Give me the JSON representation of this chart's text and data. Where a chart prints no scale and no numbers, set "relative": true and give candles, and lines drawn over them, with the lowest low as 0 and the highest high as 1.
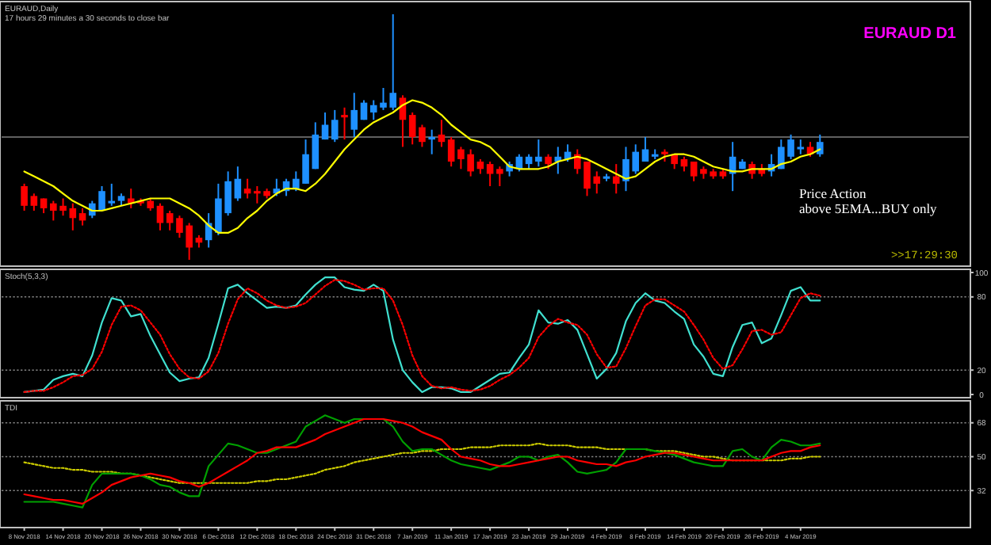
{
  "chart_data": [
    {
      "type": "candlestick",
      "title": "EURAUD,Daily",
      "relative": true,
      "tick_labels": false,
      "annotations": [
        "17 hours 29 minutes a 30 seconds to close bar",
        "Price Action\nabove 5EMA...BUY only",
        ">>17:29:30",
        "EURAUD D1"
      ],
      "categories": [
        null,
        null,
        null,
        null,
        null,
        null,
        null,
        null,
        null,
        null,
        null,
        null,
        null,
        null,
        null,
        null,
        null,
        null,
        null,
        null,
        null,
        null,
        null,
        null,
        null,
        null,
        null,
        null,
        null,
        null,
        null,
        null,
        null,
        null,
        null,
        null,
        null,
        null,
        null,
        null,
        null,
        null,
        null,
        null,
        null,
        null,
        null,
        null,
        null,
        null,
        null,
        null,
        null,
        null,
        null,
        null,
        null,
        null,
        null,
        null,
        null,
        null,
        null,
        null,
        null,
        null,
        null,
        null,
        null,
        null,
        null,
        null,
        null,
        null,
        null,
        null,
        null,
        null,
        null,
        null,
        null,
        null,
        null
      ],
      "ref_lines": [
        {
          "axis": "y",
          "value": 0.5,
          "color": "#808080"
        }
      ],
      "series": [
        {
          "ohlc": [
            [
              0.3,
              0.31,
              0.2,
              0.22
            ],
            [
              0.26,
              0.27,
              0.2,
              0.22
            ],
            [
              0.25,
              0.25,
              0.19,
              0.21
            ],
            [
              0.23,
              0.24,
              0.16,
              0.2
            ],
            [
              0.22,
              0.25,
              0.18,
              0.2
            ],
            [
              0.21,
              0.23,
              0.12,
              0.17
            ],
            [
              0.19,
              0.21,
              0.14,
              0.16
            ],
            [
              0.18,
              0.24,
              0.17,
              0.23
            ],
            [
              0.2,
              0.3,
              0.2,
              0.28
            ],
            [
              0.23,
              0.31,
              0.22,
              0.24
            ],
            [
              0.24,
              0.27,
              0.22,
              0.26
            ],
            [
              0.25,
              0.29,
              0.21,
              0.23
            ],
            [
              0.24,
              0.25,
              0.22,
              0.23
            ],
            [
              0.24,
              0.25,
              0.2,
              0.21
            ],
            [
              0.22,
              0.23,
              0.12,
              0.15
            ],
            [
              0.19,
              0.2,
              0.12,
              0.15
            ],
            [
              0.17,
              0.18,
              0.09,
              0.11
            ],
            [
              0.14,
              0.15,
              0,
              0.05
            ],
            [
              0.09,
              0.1,
              0.05,
              0.07
            ],
            [
              0.08,
              0.19,
              0.05,
              0.15
            ],
            [
              0.11,
              0.31,
              0.1,
              0.25
            ],
            [
              0.19,
              0.36,
              0.18,
              0.32
            ],
            [
              0.25,
              0.38,
              0.24,
              0.33
            ],
            [
              0.29,
              0.33,
              0.25,
              0.27
            ],
            [
              0.28,
              0.3,
              0.23,
              0.27
            ],
            [
              0.28,
              0.29,
              0.25,
              0.26
            ],
            [
              0.27,
              0.33,
              0.26,
              0.29
            ],
            [
              0.28,
              0.33,
              0.26,
              0.32
            ],
            [
              0.29,
              0.36,
              0.28,
              0.33
            ],
            [
              0.31,
              0.49,
              0.31,
              0.43
            ],
            [
              0.37,
              0.56,
              0.37,
              0.51
            ],
            [
              0.49,
              0.6,
              0.49,
              0.55
            ],
            [
              0.49,
              0.61,
              0.48,
              0.57
            ],
            [
              0.59,
              0.62,
              0.49,
              0.58
            ],
            [
              0.53,
              0.68,
              0.5,
              0.61
            ],
            [
              0.57,
              0.65,
              0.57,
              0.64
            ],
            [
              0.6,
              0.65,
              0.57,
              0.63
            ],
            [
              0.62,
              0.7,
              0.61,
              0.64
            ],
            [
              0.62,
              1,
              0.61,
              0.68
            ],
            [
              0.66,
              0.67,
              0.46,
              0.57
            ],
            [
              0.59,
              0.6,
              0.47,
              0.5
            ],
            [
              0.54,
              0.55,
              0.46,
              0.48
            ],
            [
              0.49,
              0.53,
              0.43,
              0.5
            ],
            [
              0.51,
              0.57,
              0.46,
              0.48
            ],
            [
              0.49,
              0.5,
              0.38,
              0.4
            ],
            [
              0.45,
              0.46,
              0.37,
              0.41
            ],
            [
              0.43,
              0.45,
              0.34,
              0.36
            ],
            [
              0.4,
              0.41,
              0.35,
              0.37
            ],
            [
              0.39,
              0.4,
              0.3,
              0.35
            ],
            [
              0.37,
              0.38,
              0.3,
              0.35
            ],
            [
              0.36,
              0.4,
              0.34,
              0.39
            ],
            [
              0.37,
              0.43,
              0.36,
              0.42
            ],
            [
              0.39,
              0.43,
              0.37,
              0.42
            ],
            [
              0.4,
              0.49,
              0.38,
              0.42
            ],
            [
              0.42,
              0.43,
              0.37,
              0.39
            ],
            [
              0.4,
              0.46,
              0.35,
              0.42
            ],
            [
              0.41,
              0.47,
              0.4,
              0.44
            ],
            [
              0.43,
              0.45,
              0.35,
              0.37
            ],
            [
              0.4,
              0.4,
              0.26,
              0.29
            ],
            [
              0.34,
              0.36,
              0.27,
              0.31
            ],
            [
              0.33,
              0.35,
              0.32,
              0.34
            ],
            [
              0.34,
              0.39,
              0.27,
              0.31
            ],
            [
              0.32,
              0.46,
              0.28,
              0.41
            ],
            [
              0.36,
              0.47,
              0.35,
              0.44
            ],
            [
              0.4,
              0.5,
              0.4,
              0.45
            ],
            [
              0.42,
              0.45,
              0.41,
              0.43
            ],
            [
              0.44,
              0.45,
              0.4,
              0.43
            ],
            [
              0.43,
              0.43,
              0.37,
              0.39
            ],
            [
              0.41,
              0.42,
              0.36,
              0.38
            ],
            [
              0.4,
              0.4,
              0.32,
              0.34
            ],
            [
              0.37,
              0.38,
              0.33,
              0.35
            ],
            [
              0.36,
              0.37,
              0.33,
              0.34
            ],
            [
              0.36,
              0.37,
              0.33,
              0.34
            ],
            [
              0.35,
              0.48,
              0.28,
              0.42
            ],
            [
              0.37,
              0.41,
              0.37,
              0.4
            ],
            [
              0.39,
              0.4,
              0.33,
              0.35
            ],
            [
              0.37,
              0.39,
              0.34,
              0.35
            ],
            [
              0.36,
              0.43,
              0.34,
              0.39
            ],
            [
              0.37,
              0.49,
              0.37,
              0.46
            ],
            [
              0.42,
              0.51,
              0.41,
              0.49
            ],
            [
              0.45,
              0.49,
              0.43,
              0.46
            ],
            [
              0.46,
              0.48,
              0.42,
              0.43
            ],
            [
              0.43,
              0.51,
              0.42,
              0.48
            ]
          ],
          "colors": [
            "#ff0000",
            "#ff0000",
            "#ff0000",
            "#ff0000",
            "#ff0000",
            "#ff0000",
            "#ff0000",
            "#1e90ff",
            "#1e90ff",
            "#1e90ff",
            "#1e90ff",
            "#ff0000",
            "#ff0000",
            "#ff0000",
            "#ff0000",
            "#ff0000",
            "#ff0000",
            "#ff0000",
            "#ff0000",
            "#1e90ff",
            "#1e90ff",
            "#1e90ff",
            "#1e90ff",
            "#ff0000",
            "#ff0000",
            "#ff0000",
            "#1e90ff",
            "#1e90ff",
            "#1e90ff",
            "#1e90ff",
            "#1e90ff",
            "#1e90ff",
            "#1e90ff",
            "#ff0000",
            "#1e90ff",
            "#1e90ff",
            "#1e90ff",
            "#1e90ff",
            "#1e90ff",
            "#ff0000",
            "#ff0000",
            "#ff0000",
            "#1e90ff",
            "#ff0000",
            "#ff0000",
            "#ff0000",
            "#ff0000",
            "#ff0000",
            "#ff0000",
            "#ff0000",
            "#1e90ff",
            "#1e90ff",
            "#1e90ff",
            "#1e90ff",
            "#ff0000",
            "#1e90ff",
            "#1e90ff",
            "#ff0000",
            "#ff0000",
            "#ff0000",
            "#1e90ff",
            "#ff0000",
            "#1e90ff",
            "#1e90ff",
            "#1e90ff",
            "#1e90ff",
            "#ff0000",
            "#ff0000",
            "#ff0000",
            "#ff0000",
            "#ff0000",
            "#ff0000",
            "#ff0000",
            "#1e90ff",
            "#1e90ff",
            "#ff0000",
            "#ff0000",
            "#1e90ff",
            "#1e90ff",
            "#1e90ff",
            "#1e90ff",
            "#ff0000",
            "#1e90ff"
          ]
        },
        {
          "type": "line",
          "color": "#ffff00",
          "values": [
            0.36,
            0.34,
            0.32,
            0.3,
            0.27,
            0.24,
            0.22,
            0.2,
            0.2,
            0.21,
            0.22,
            0.23,
            0.24,
            0.25,
            0.25,
            0.25,
            0.23,
            0.21,
            0.18,
            0.14,
            0.11,
            0.11,
            0.13,
            0.17,
            0.2,
            0.24,
            0.27,
            0.29,
            0.29,
            0.28,
            0.31,
            0.35,
            0.4,
            0.45,
            0.49,
            0.53,
            0.56,
            0.58,
            0.6,
            0.63,
            0.65,
            0.64,
            0.62,
            0.59,
            0.55,
            0.52,
            0.49,
            0.48,
            0.46,
            0.42,
            0.38,
            0.37,
            0.37,
            0.37,
            0.38,
            0.4,
            0.41,
            0.42,
            0.41,
            0.39,
            0.37,
            0.35,
            0.33,
            0.34,
            0.37,
            0.4,
            0.42,
            0.43,
            0.43,
            0.42,
            0.4,
            0.38,
            0.37,
            0.36,
            0.36,
            0.37,
            0.37,
            0.37,
            0.39,
            0.4,
            0.42,
            0.43,
            0.45
          ]
        }
      ]
    },
    {
      "type": "line",
      "title": "Stoch(5,3,3)",
      "tick_labels": "y",
      "ylim": [
        0,
        100
      ],
      "yticks": [
        0,
        20,
        80,
        100
      ],
      "categories": [
        null,
        null,
        null,
        null,
        null,
        null,
        null,
        null,
        null,
        null,
        null,
        null,
        null,
        null,
        null,
        null,
        null,
        null,
        null,
        null,
        null,
        null,
        null,
        null,
        null,
        null,
        null,
        null,
        null,
        null,
        null,
        null,
        null,
        null,
        null,
        null,
        null,
        null,
        null,
        null,
        null,
        null,
        null,
        null,
        null,
        null,
        null,
        null,
        null,
        null,
        null,
        null,
        null,
        null,
        null,
        null,
        null,
        null,
        null,
        null,
        null,
        null,
        null,
        null,
        null,
        null,
        null,
        null,
        null,
        null,
        null,
        null,
        null,
        null,
        null,
        null,
        null,
        null,
        null,
        null,
        null,
        null,
        null
      ],
      "ref_lines": [
        {
          "axis": "y",
          "value": 80,
          "color": "#808080",
          "line_style": "dotted"
        },
        {
          "axis": "y",
          "value": 20,
          "color": "#808080",
          "line_style": "dotted"
        }
      ],
      "series": [
        {
          "color": "#40e0d0",
          "values": [
            2,
            3,
            4,
            12,
            15,
            17,
            15,
            32,
            59,
            79,
            77,
            64,
            66,
            48,
            33,
            18,
            11,
            13,
            14,
            30,
            58,
            87,
            90,
            83,
            77,
            71,
            72,
            71,
            73,
            82,
            90,
            96,
            96,
            88,
            86,
            85,
            90,
            85,
            45,
            20,
            10,
            2,
            6,
            6,
            5,
            2,
            2,
            7,
            12,
            17,
            18,
            30,
            41,
            69,
            59,
            58,
            61,
            53,
            33,
            13,
            21,
            34,
            60,
            75,
            83,
            77,
            75,
            68,
            62,
            41,
            31,
            17,
            15,
            39,
            57,
            59,
            42,
            46,
            65,
            85,
            88,
            77,
            77
          ]
        },
        {
          "color": "#ff0000",
          "line_style": "dotted",
          "values": [
            2,
            3,
            3,
            6,
            10,
            15,
            16,
            21,
            35,
            57,
            72,
            73,
            69,
            59,
            49,
            33,
            21,
            14,
            13,
            19,
            34,
            58,
            78,
            87,
            83,
            77,
            73,
            71,
            72,
            75,
            82,
            89,
            94,
            93,
            90,
            86,
            87,
            87,
            77,
            57,
            32,
            15,
            7,
            5,
            6,
            4,
            3,
            4,
            7,
            12,
            16,
            22,
            30,
            47,
            56,
            62,
            59,
            57,
            49,
            33,
            22,
            23,
            38,
            56,
            73,
            78,
            78,
            73,
            68,
            57,
            45,
            30,
            21,
            24,
            37,
            52,
            53,
            49,
            51,
            65,
            79,
            83,
            81
          ]
        }
      ]
    },
    {
      "type": "line",
      "title": "TDI",
      "ylim": [
        14,
        78
      ],
      "yticks": [
        32,
        50,
        68
      ],
      "categories": [
        "8 Nov 2018",
        null,
        null,
        null,
        "14 Nov 2018",
        null,
        null,
        null,
        "20 Nov 2018",
        null,
        null,
        null,
        "26 Nov 2018",
        null,
        null,
        null,
        "30 Nov 2018",
        null,
        null,
        null,
        "6 Dec 2018",
        null,
        null,
        null,
        "12 Dec 2018",
        null,
        null,
        null,
        "18 Dec 2018",
        null,
        null,
        null,
        "24 Dec 2018",
        null,
        null,
        null,
        "31 Dec 2018",
        null,
        null,
        null,
        "7 Jan 2019",
        null,
        null,
        null,
        "11 Jan 2019",
        null,
        null,
        null,
        "17 Jan 2019",
        null,
        null,
        null,
        "23 Jan 2019",
        null,
        null,
        null,
        "29 Jan 2019",
        null,
        null,
        null,
        "4 Feb 2019",
        null,
        null,
        null,
        "8 Feb 2019",
        null,
        null,
        null,
        "14 Feb 2019",
        null,
        null,
        null,
        "20 Feb 2019",
        null,
        null,
        null,
        "26 Feb 2019",
        null,
        null,
        null,
        "4 Mar 2019",
        null,
        null
      ],
      "ref_lines": [
        {
          "axis": "y",
          "value": 68,
          "color": "#808080",
          "line_style": "dotted"
        },
        {
          "axis": "y",
          "value": 50,
          "color": "#808080",
          "line_style": "dotted"
        },
        {
          "axis": "y",
          "value": 32,
          "color": "#808080",
          "line_style": "dotted"
        }
      ],
      "series": [
        {
          "color": "#cccc00",
          "line_style": "dotted",
          "values": [
            47,
            46,
            45,
            44,
            44,
            43,
            43,
            42,
            42,
            42,
            41,
            41,
            40,
            39,
            38,
            37,
            36,
            36,
            36,
            36,
            36,
            36,
            36,
            36,
            37,
            37,
            38,
            38,
            39,
            40,
            41,
            43,
            44,
            45,
            47,
            48,
            49,
            50,
            51,
            52,
            52,
            53,
            53,
            54,
            54,
            54,
            55,
            55,
            55,
            56,
            56,
            56,
            56,
            57,
            56,
            56,
            56,
            55,
            55,
            55,
            54,
            54,
            54,
            54,
            54,
            53,
            53,
            53,
            52,
            51,
            50,
            50,
            49,
            48,
            48,
            48,
            48,
            48,
            48,
            49,
            49,
            50,
            50
          ]
        },
        {
          "color": "#00a000",
          "values": [
            26,
            26,
            26,
            26,
            25,
            24,
            23,
            35,
            41,
            41,
            41,
            41,
            40,
            38,
            35,
            34,
            31,
            29,
            29,
            45,
            51,
            57,
            56,
            54,
            52,
            52,
            54,
            56,
            58,
            66,
            69,
            72,
            70,
            68,
            70,
            70,
            70,
            70,
            66,
            58,
            53,
            54,
            54,
            51,
            48,
            46,
            45,
            44,
            43,
            45,
            47,
            50,
            50,
            48,
            50,
            51,
            47,
            42,
            41,
            42,
            43,
            47,
            54,
            54,
            54,
            53,
            52,
            51,
            49,
            47,
            46,
            45,
            45,
            53,
            54,
            50,
            48,
            55,
            59,
            58,
            56,
            56,
            57
          ]
        },
        {
          "color": "#ff0000",
          "values": [
            30,
            29,
            28,
            27,
            27,
            26,
            25,
            28,
            31,
            35,
            37,
            39,
            40,
            41,
            40,
            39,
            37,
            36,
            34,
            36,
            39,
            42,
            45,
            48,
            52,
            53,
            55,
            55,
            55,
            57,
            59,
            62,
            64,
            66,
            68,
            70,
            70,
            70,
            69,
            68,
            66,
            63,
            61,
            59,
            54,
            50,
            49,
            48,
            46,
            45,
            45,
            46,
            47,
            48,
            49,
            50,
            50,
            48,
            47,
            46,
            46,
            45,
            47,
            48,
            50,
            51,
            52,
            52,
            51,
            50,
            49,
            48,
            48,
            48,
            48,
            48,
            48,
            50,
            52,
            53,
            53,
            55,
            56
          ]
        }
      ]
    }
  ]
}
